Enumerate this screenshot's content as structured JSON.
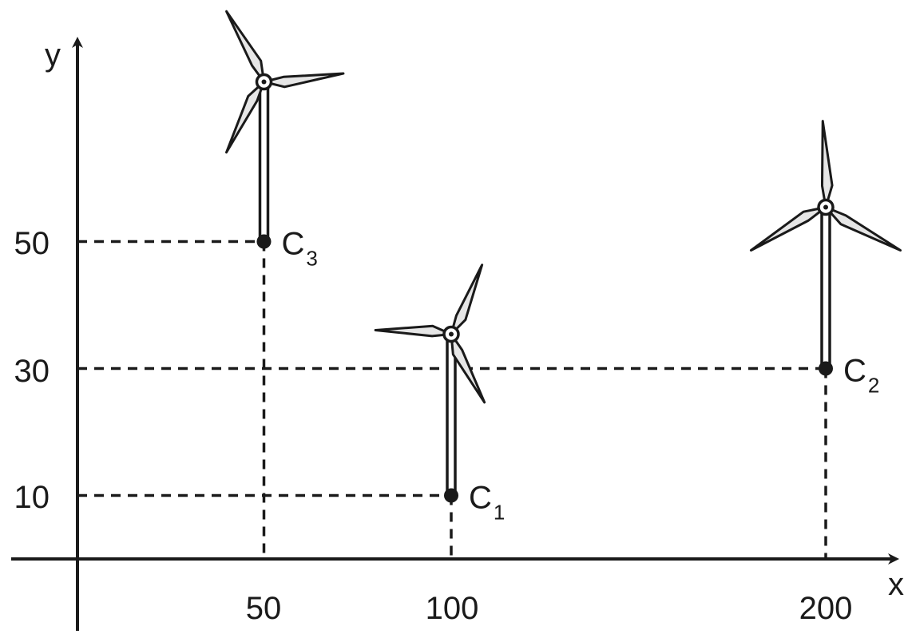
{
  "axes": {
    "x_label": "x",
    "y_label": "y",
    "x_ticks": [
      "50",
      "100",
      "200"
    ],
    "y_ticks": [
      "10",
      "30",
      "50"
    ]
  },
  "points": [
    {
      "letter": "C",
      "index": "1",
      "x": 100,
      "y": 10
    },
    {
      "letter": "C",
      "index": "2",
      "x": 200,
      "y": 30
    },
    {
      "letter": "C",
      "index": "3",
      "x": 50,
      "y": 50
    }
  ],
  "colors": {
    "ink": "#1a1a1a",
    "blade_fill": "#e6e6e6"
  }
}
